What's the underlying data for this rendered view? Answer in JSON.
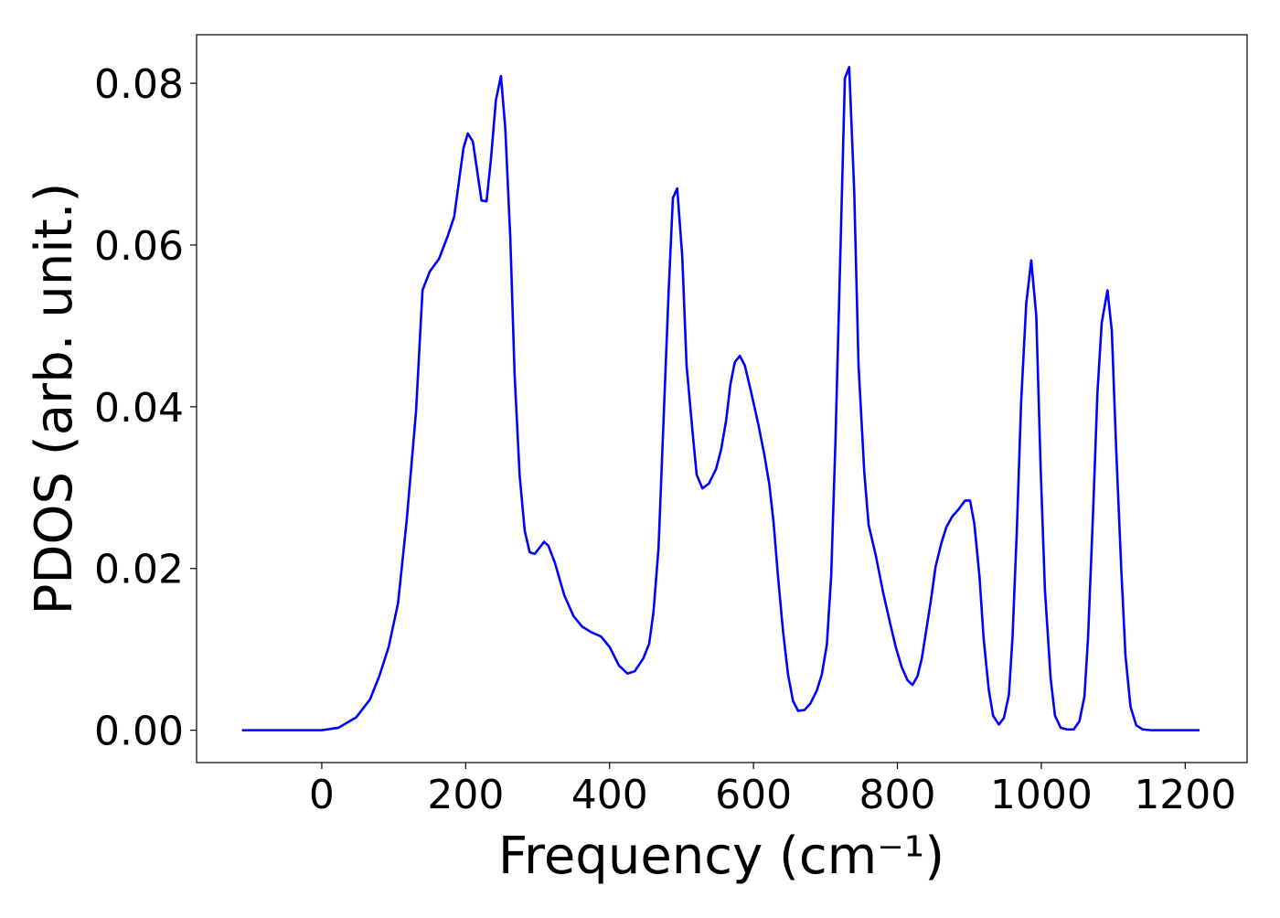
{
  "chart_data": {
    "type": "line",
    "xlabel": "Frequency (cm⁻¹)",
    "ylabel": "PDOS (arb. unit.)",
    "color": "#0000ff",
    "x": [
      -111,
      0,
      23,
      48,
      67,
      80,
      93,
      106,
      118,
      131,
      140,
      150,
      163,
      175,
      184,
      197,
      203,
      210,
      222,
      229,
      235,
      242,
      249,
      255,
      262,
      268,
      275,
      282,
      289,
      296,
      309,
      315,
      324,
      337,
      350,
      362,
      375,
      388,
      400,
      413,
      425,
      435,
      447,
      455,
      461,
      468,
      475,
      482,
      488,
      494,
      501,
      507,
      515,
      521,
      529,
      538,
      548,
      555,
      562,
      568,
      574,
      581,
      588,
      597,
      607,
      615,
      622,
      628,
      634,
      641,
      648,
      655,
      662,
      671,
      679,
      688,
      695,
      702,
      708,
      714,
      721,
      727,
      733,
      740,
      746,
      754,
      760,
      770,
      780,
      791,
      798,
      806,
      814,
      821,
      828,
      834,
      840,
      847,
      853,
      861,
      868,
      876,
      885,
      894,
      901,
      907,
      914,
      920,
      927,
      933,
      941,
      948,
      955,
      960,
      966,
      972,
      979,
      986,
      993,
      999,
      1005,
      1013,
      1019,
      1027,
      1036,
      1045,
      1053,
      1060,
      1065,
      1072,
      1078,
      1084,
      1092,
      1098,
      1104,
      1111,
      1117,
      1124,
      1132,
      1141,
      1153,
      1220
    ],
    "values": [
      0,
      0,
      0.0003,
      0.0016,
      0.0038,
      0.0067,
      0.0103,
      0.0157,
      0.0259,
      0.0394,
      0.0544,
      0.0567,
      0.0583,
      0.0611,
      0.0635,
      0.072,
      0.0738,
      0.0728,
      0.0655,
      0.0654,
      0.0705,
      0.0779,
      0.0809,
      0.0745,
      0.0609,
      0.044,
      0.0315,
      0.0247,
      0.022,
      0.0218,
      0.0233,
      0.0228,
      0.0207,
      0.0167,
      0.0141,
      0.0128,
      0.0121,
      0.0116,
      0.0103,
      0.008,
      0.007,
      0.0073,
      0.0089,
      0.0107,
      0.0146,
      0.0225,
      0.0383,
      0.0541,
      0.0658,
      0.067,
      0.0586,
      0.0451,
      0.0372,
      0.0316,
      0.0299,
      0.0305,
      0.0323,
      0.0347,
      0.0383,
      0.0428,
      0.0455,
      0.0463,
      0.0451,
      0.0417,
      0.0377,
      0.0341,
      0.0304,
      0.0256,
      0.0191,
      0.0123,
      0.0069,
      0.0036,
      0.0024,
      0.0025,
      0.0033,
      0.0049,
      0.0069,
      0.0106,
      0.0191,
      0.036,
      0.0598,
      0.0806,
      0.082,
      0.0666,
      0.0451,
      0.0319,
      0.0254,
      0.0216,
      0.0171,
      0.0128,
      0.0102,
      0.0078,
      0.0062,
      0.0056,
      0.0067,
      0.0089,
      0.0123,
      0.0163,
      0.0202,
      0.0231,
      0.0251,
      0.0264,
      0.0273,
      0.0284,
      0.0284,
      0.0255,
      0.0191,
      0.0112,
      0.005,
      0.0018,
      0.0007,
      0.0015,
      0.0044,
      0.0115,
      0.0247,
      0.0406,
      0.0527,
      0.0581,
      0.0513,
      0.0327,
      0.0174,
      0.0064,
      0.0018,
      0.0003,
      0.0001,
      0.0001,
      0.0011,
      0.0042,
      0.0115,
      0.027,
      0.0417,
      0.0504,
      0.0544,
      0.0494,
      0.0349,
      0.0202,
      0.0092,
      0.0029,
      0.0006,
      0.0001,
      0,
      0
    ],
    "xlim": [
      -174,
      1286
    ],
    "ylim": [
      -0.004,
      0.086
    ],
    "xticks": [
      0,
      200,
      400,
      600,
      800,
      1000,
      1200
    ],
    "yticks": [
      {
        "value": 0,
        "label": "0.00"
      },
      {
        "value": 0.02,
        "label": "0.02"
      },
      {
        "value": 0.04,
        "label": "0.04"
      },
      {
        "value": 0.06,
        "label": "0.06"
      },
      {
        "value": 0.08,
        "label": "0.08"
      }
    ]
  }
}
